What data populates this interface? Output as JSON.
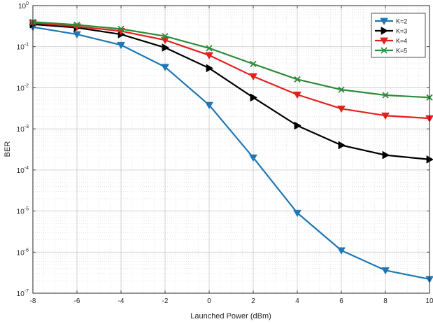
{
  "chart_data": {
    "type": "line",
    "xlabel": "Launched Power (dBm)",
    "ylabel": "BER",
    "xlim": [
      -8,
      10
    ],
    "ylim": [
      1e-07,
      1
    ],
    "yscale": "log",
    "grid": true,
    "legend_position": "top-right",
    "x": [
      -8,
      -6,
      -4,
      -2,
      0,
      2,
      4,
      6,
      8,
      10
    ],
    "x_tick_labels": [
      "-8",
      "-6",
      "-4",
      "-2",
      "0",
      "2",
      "4",
      "6",
      "8",
      "10"
    ],
    "y_ticks": [
      {
        "base": "10",
        "exp": "0",
        "value": 1
      },
      {
        "base": "10",
        "exp": "-1",
        "value": 0.1
      },
      {
        "base": "10",
        "exp": "-2",
        "value": 0.01
      },
      {
        "base": "10",
        "exp": "-3",
        "value": 0.001
      },
      {
        "base": "10",
        "exp": "-4",
        "value": 0.0001
      },
      {
        "base": "10",
        "exp": "-5",
        "value": 1e-05
      },
      {
        "base": "10",
        "exp": "-6",
        "value": 1e-06
      },
      {
        "base": "10",
        "exp": "-7",
        "value": 1e-07
      }
    ],
    "series": [
      {
        "name": "K=2",
        "color": "#1f77b4",
        "marker": "triangle-down",
        "values": [
          0.3,
          0.2,
          0.11,
          0.032,
          0.0038,
          0.0002,
          9e-06,
          1.1e-06,
          3.6e-07,
          2.2e-07
        ]
      },
      {
        "name": "K=3",
        "color": "#000000",
        "marker": "triangle-right",
        "values": [
          0.35,
          0.29,
          0.2,
          0.095,
          0.03,
          0.0058,
          0.0012,
          0.0004,
          0.00023,
          0.00018
        ]
      },
      {
        "name": "K=4",
        "color": "#e3211c",
        "marker": "triangle-down",
        "values": [
          0.38,
          0.31,
          0.24,
          0.145,
          0.062,
          0.019,
          0.0068,
          0.0031,
          0.0021,
          0.0018
        ]
      },
      {
        "name": "K=5",
        "color": "#2e8b3a",
        "marker": "x",
        "values": [
          0.4,
          0.34,
          0.27,
          0.18,
          0.092,
          0.038,
          0.016,
          0.009,
          0.0066,
          0.0058
        ]
      }
    ]
  }
}
